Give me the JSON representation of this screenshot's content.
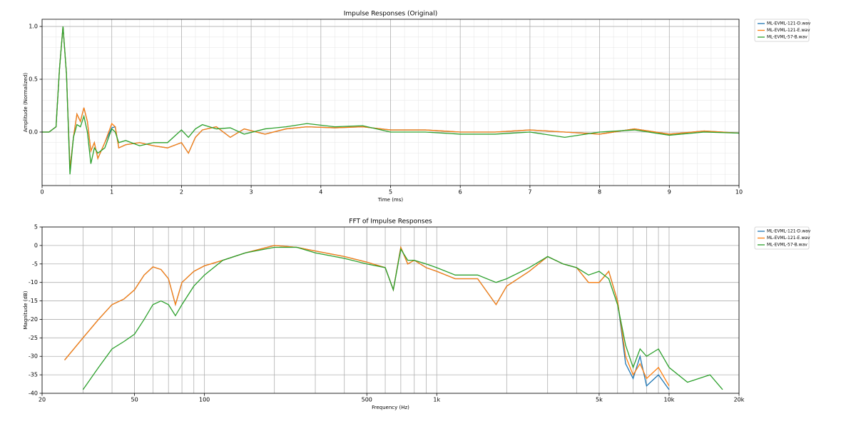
{
  "chart_data": [
    {
      "type": "line",
      "title": "Impulse Responses (Original)",
      "x_label": "Time (ms)",
      "y_label": "Amplitude (Normalized)",
      "x": [
        0,
        0.1,
        0.2,
        0.25,
        0.3,
        0.35,
        0.4,
        0.45,
        0.5,
        0.55,
        0.6,
        0.65,
        0.7,
        0.75,
        0.8,
        0.9,
        1.0,
        1.05,
        1.1,
        1.2,
        1.4,
        1.6,
        1.8,
        2.0,
        2.1,
        2.2,
        2.3,
        2.5,
        2.7,
        2.9,
        3.2,
        3.5,
        3.8,
        4.2,
        4.6,
        5.0,
        5.5,
        6.0,
        6.5,
        7.0,
        7.5,
        8.0,
        8.5,
        9.0,
        9.5,
        10.0
      ],
      "series": [
        {
          "name": "ML-EVML-121-D.wav",
          "color": "#1f77b4",
          "values": [
            0,
            0,
            0.05,
            0.6,
            1.0,
            0.55,
            -0.35,
            -0.05,
            0.17,
            0.1,
            0.23,
            0.1,
            -0.18,
            -0.1,
            -0.25,
            -0.1,
            0.04,
            0.05,
            -0.15,
            -0.12,
            -0.1,
            -0.13,
            -0.15,
            -0.1,
            -0.2,
            -0.05,
            0.02,
            0.05,
            -0.05,
            0.03,
            -0.02,
            0.03,
            0.05,
            0.04,
            0.05,
            0.02,
            0.02,
            0,
            0,
            0.02,
            0,
            -0.02,
            0.03,
            -0.02,
            0.01,
            -0.01
          ]
        },
        {
          "name": "ML-EVML-121-E.wav",
          "color": "#ff7f0e",
          "values": [
            0,
            0,
            0.05,
            0.6,
            1.0,
            0.55,
            -0.35,
            -0.05,
            0.17,
            0.1,
            0.23,
            0.1,
            -0.18,
            -0.1,
            -0.25,
            -0.1,
            0.08,
            0.05,
            -0.15,
            -0.12,
            -0.1,
            -0.13,
            -0.15,
            -0.1,
            -0.2,
            -0.05,
            0.02,
            0.05,
            -0.05,
            0.03,
            -0.02,
            0.03,
            0.05,
            0.04,
            0.05,
            0.02,
            0.02,
            0,
            0,
            0.02,
            0,
            -0.02,
            0.03,
            -0.02,
            0.01,
            -0.01
          ]
        },
        {
          "name": "ML-EVML-57-B.wav",
          "color": "#2ca02c",
          "values": [
            0,
            0,
            0.05,
            0.6,
            1.0,
            0.55,
            -0.4,
            -0.05,
            0.07,
            0.05,
            0.15,
            0,
            -0.3,
            -0.15,
            -0.2,
            -0.15,
            0.03,
            0,
            -0.1,
            -0.08,
            -0.13,
            -0.1,
            -0.1,
            0.02,
            -0.05,
            0.03,
            0.07,
            0.03,
            0.04,
            -0.02,
            0.03,
            0.05,
            0.08,
            0.05,
            0.06,
            0,
            0,
            -0.02,
            -0.02,
            0,
            -0.05,
            0,
            0.02,
            -0.03,
            0,
            -0.01
          ]
        }
      ],
      "xlim": [
        0,
        10
      ],
      "xticks": [
        0,
        1,
        2,
        3,
        4,
        5,
        6,
        7,
        8,
        9,
        10
      ],
      "ylim": [
        -0.507,
        1.068
      ],
      "yticks": [
        {
          "value": 0,
          "label": "0.0"
        },
        {
          "value": 0.5,
          "label": "0.5"
        },
        {
          "value": 1.0,
          "label": "1.0"
        }
      ],
      "grid": true,
      "minor_grid": true,
      "legend": "outside upper right"
    },
    {
      "type": "line",
      "title": "FFT of Impulse Responses",
      "x_label": "Frequency (Hz)",
      "y_label": "Magnitude (dB)",
      "xscale": "log",
      "x": [
        20,
        25,
        30,
        35,
        40,
        45,
        50,
        55,
        60,
        65,
        70,
        75,
        80,
        90,
        100,
        120,
        150,
        200,
        250,
        300,
        400,
        500,
        600,
        650,
        700,
        750,
        800,
        900,
        1000,
        1200,
        1500,
        1800,
        2000,
        2500,
        3000,
        3500,
        4000,
        4500,
        5000,
        5500,
        6000,
        6500,
        7000,
        7500,
        8000,
        9000,
        10000,
        12000,
        15000,
        17000
      ],
      "series": [
        {
          "name": "ML-EVML-121-D.wav",
          "color": "#1f77b4",
          "values": [
            null,
            -31,
            -25,
            -20,
            -16,
            -14.5,
            -12,
            -8,
            -5.8,
            -6.5,
            -9,
            -16,
            -10,
            -7,
            -5.5,
            -4,
            -2,
            0,
            -0.5,
            -1.5,
            -3,
            -4.5,
            -6,
            -12,
            -0.5,
            -5,
            -4,
            -6,
            -7,
            -9,
            -9,
            -16,
            -11,
            -7,
            -3,
            -5,
            -6,
            -10,
            -10,
            -7,
            -15,
            -32,
            -36,
            -30,
            -38,
            -35,
            -39,
            null,
            null,
            null
          ]
        },
        {
          "name": "ML-EVML-121-E.wav",
          "color": "#ff7f0e",
          "values": [
            null,
            -31,
            -25,
            -20,
            -16,
            -14.5,
            -12,
            -8,
            -5.8,
            -6.5,
            -9,
            -16,
            -10,
            -7,
            -5.5,
            -4,
            -2,
            0,
            -0.5,
            -1.5,
            -3,
            -4.5,
            -6,
            -12,
            -0.5,
            -5,
            -4,
            -6,
            -7,
            -9,
            -9,
            -16,
            -11,
            -7,
            -3,
            -5,
            -6,
            -10,
            -10,
            -7,
            -15,
            -30,
            -35,
            -32,
            -36,
            -33,
            -38,
            null,
            null,
            null
          ]
        },
        {
          "name": "ML-EVML-57-B.wav",
          "color": "#2ca02c",
          "values": [
            null,
            null,
            -39,
            -33,
            -28,
            -26,
            -24,
            -20,
            -16,
            -15,
            -16,
            -19,
            -16,
            -11,
            -8,
            -4,
            -2,
            -0.5,
            -0.5,
            -2,
            -3.5,
            -5,
            -6,
            -12,
            -1,
            -4,
            -4,
            -5,
            -6,
            -8,
            -8,
            -10,
            -9,
            -6,
            -3,
            -5,
            -6,
            -8,
            -7,
            -9,
            -16,
            -27,
            -33,
            -28,
            -30,
            -28,
            -33,
            -37,
            -35,
            -39
          ]
        }
      ],
      "xlim": [
        20,
        20000
      ],
      "xticks": [
        20,
        50,
        100,
        500,
        {
          "value": 1000,
          "label": "1k"
        },
        {
          "value": 5000,
          "label": "5k"
        },
        {
          "value": 10000,
          "label": "10k"
        },
        {
          "value": 20000,
          "label": "20k"
        }
      ],
      "ylim": [
        -40,
        5
      ],
      "yticks": [
        -40,
        -35,
        -30,
        -25,
        -20,
        -15,
        -10,
        -5,
        0,
        5
      ],
      "grid": true,
      "minor_grid": true,
      "legend": "outside upper right"
    }
  ]
}
